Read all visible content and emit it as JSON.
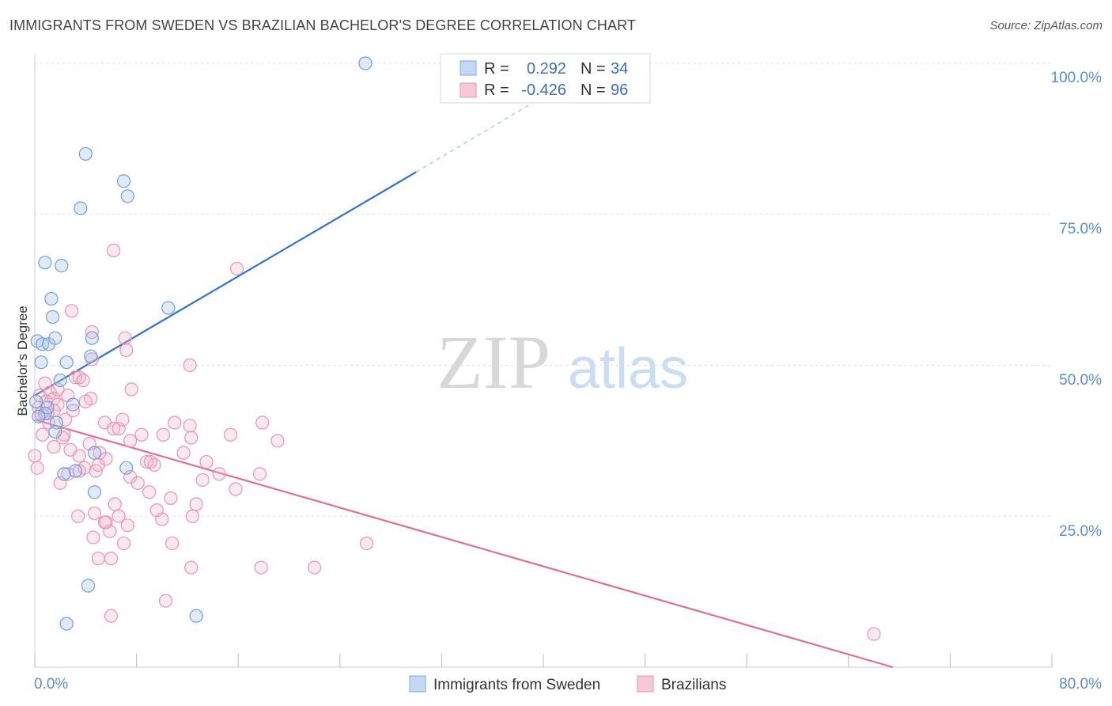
{
  "chart_data": {
    "type": "scatter",
    "title": "IMMIGRANTS FROM SWEDEN VS BRAZILIAN BACHELOR'S DEGREE CORRELATION CHART",
    "source": "Source: ZipAtlas.com",
    "xlabel": "",
    "ylabel": "Bachelor's Degree",
    "xlim": [
      0,
      80
    ],
    "ylim": [
      0,
      100
    ],
    "x_tick_labels": [
      "0.0%",
      "80.0%"
    ],
    "y_ticks": [
      25,
      50,
      75,
      100
    ],
    "y_tick_labels": [
      "25.0%",
      "50.0%",
      "75.0%",
      "100.0%"
    ],
    "watermark": {
      "zip": "ZIP",
      "atlas": "atlas"
    },
    "legend": [
      {
        "r_label": "R =",
        "r_value": "0.292",
        "n_label": "N =",
        "n_value": "34"
      },
      {
        "r_label": "R =",
        "r_value": "-0.426",
        "n_label": "N =",
        "n_value": "96"
      }
    ],
    "series": [
      {
        "name": "Immigrants from Sweden",
        "color": "#8fb8e8",
        "line_color": "#2e72d2",
        "trend": {
          "x0": 0,
          "y0": 45,
          "x1": 30,
          "y1": 82,
          "dash_x1": 42,
          "dash_y1": 97
        },
        "points": [
          [
            26,
            100
          ],
          [
            4,
            85
          ],
          [
            7,
            80.5
          ],
          [
            7.3,
            78
          ],
          [
            3.6,
            76
          ],
          [
            0.8,
            67
          ],
          [
            2.1,
            66.5
          ],
          [
            1.3,
            61
          ],
          [
            1.4,
            58
          ],
          [
            10.5,
            59.5
          ],
          [
            0.2,
            54
          ],
          [
            0.6,
            53.5
          ],
          [
            1.1,
            53.5
          ],
          [
            1.6,
            54.5
          ],
          [
            4.5,
            54.5
          ],
          [
            4.4,
            51.5
          ],
          [
            0.5,
            50.5
          ],
          [
            2.5,
            50.5
          ],
          [
            2.0,
            47.5
          ],
          [
            0.1,
            44
          ],
          [
            1.0,
            43
          ],
          [
            3.0,
            43.5
          ],
          [
            0.8,
            42
          ],
          [
            1.7,
            40.5
          ],
          [
            1.6,
            39
          ],
          [
            4.7,
            35.5
          ],
          [
            3.2,
            32.5
          ],
          [
            2.3,
            32
          ],
          [
            7.2,
            33
          ],
          [
            4.7,
            29
          ],
          [
            4.2,
            13.5
          ],
          [
            12.7,
            8.5
          ],
          [
            2.5,
            7.2
          ],
          [
            0.3,
            41.5
          ]
        ]
      },
      {
        "name": "Brazilians",
        "color": "#f5a8c2",
        "line_color": "#e26d9b",
        "trend": {
          "x0": 0,
          "y0": 41,
          "x1": 67.5,
          "y1": 0
        },
        "points": [
          [
            6.2,
            69
          ],
          [
            15.9,
            66
          ],
          [
            2.9,
            59
          ],
          [
            4.5,
            55.5
          ],
          [
            7.1,
            54.5
          ],
          [
            7.2,
            52.5
          ],
          [
            12.2,
            50
          ],
          [
            4.5,
            51
          ],
          [
            3.2,
            48
          ],
          [
            3.5,
            48
          ],
          [
            0.8,
            47
          ],
          [
            7.6,
            46
          ],
          [
            0.4,
            45
          ],
          [
            1.2,
            45.5
          ],
          [
            2.6,
            45
          ],
          [
            4.4,
            44.5
          ],
          [
            4.0,
            44
          ],
          [
            0.9,
            44
          ],
          [
            1.5,
            44.5
          ],
          [
            1.8,
            43.5
          ],
          [
            0.3,
            43
          ],
          [
            1.5,
            42.5
          ],
          [
            3.0,
            42.5
          ],
          [
            0.5,
            42
          ],
          [
            1.0,
            42
          ],
          [
            2.4,
            41
          ],
          [
            5.5,
            40.5
          ],
          [
            11.0,
            40.5
          ],
          [
            12.2,
            40
          ],
          [
            17.9,
            40.5
          ],
          [
            6.2,
            39.5
          ],
          [
            6.6,
            39.5
          ],
          [
            2.3,
            38.5
          ],
          [
            2.2,
            38
          ],
          [
            8.4,
            38.5
          ],
          [
            10.1,
            38.5
          ],
          [
            12.3,
            38
          ],
          [
            15.4,
            38.5
          ],
          [
            19.1,
            37.5
          ],
          [
            1.5,
            36.5
          ],
          [
            7.5,
            37.5
          ],
          [
            5.1,
            35.5
          ],
          [
            3.5,
            35
          ],
          [
            5.6,
            34.5
          ],
          [
            13.5,
            34
          ],
          [
            8.8,
            34
          ],
          [
            9.4,
            33.5
          ],
          [
            9.1,
            34
          ],
          [
            3.9,
            33
          ],
          [
            4.8,
            32.5
          ],
          [
            5.0,
            33.5
          ],
          [
            14.5,
            32
          ],
          [
            17.7,
            32
          ],
          [
            2.6,
            32
          ],
          [
            3.5,
            32.5
          ],
          [
            7.5,
            31.5
          ],
          [
            9.0,
            29
          ],
          [
            10.7,
            28
          ],
          [
            6.3,
            27
          ],
          [
            4.7,
            25.5
          ],
          [
            3.4,
            25
          ],
          [
            6.6,
            25
          ],
          [
            10.0,
            24.5
          ],
          [
            12.4,
            25
          ],
          [
            5.6,
            24
          ],
          [
            5.5,
            24
          ],
          [
            7.3,
            23.5
          ],
          [
            4.6,
            21.5
          ],
          [
            10.8,
            20.5
          ],
          [
            26.1,
            20.5
          ],
          [
            5.0,
            18
          ],
          [
            6.0,
            18
          ],
          [
            12.3,
            16.5
          ],
          [
            17.8,
            16.5
          ],
          [
            22.0,
            16.5
          ],
          [
            10.3,
            11
          ],
          [
            6.0,
            8.5
          ],
          [
            66.0,
            5.5
          ],
          [
            0.0,
            35
          ],
          [
            0.2,
            33
          ],
          [
            1.8,
            46
          ],
          [
            3.8,
            47.5
          ],
          [
            1.1,
            40.5
          ],
          [
            0.6,
            38.5
          ],
          [
            2.8,
            36
          ],
          [
            4.3,
            37
          ],
          [
            6.9,
            41
          ],
          [
            8.1,
            30.5
          ],
          [
            13.2,
            31
          ],
          [
            11.7,
            35.5
          ],
          [
            15.8,
            29.5
          ],
          [
            2.0,
            30.5
          ],
          [
            9.6,
            26
          ],
          [
            12.7,
            27
          ],
          [
            5.9,
            22.5
          ],
          [
            7.0,
            20.5
          ]
        ]
      }
    ]
  }
}
